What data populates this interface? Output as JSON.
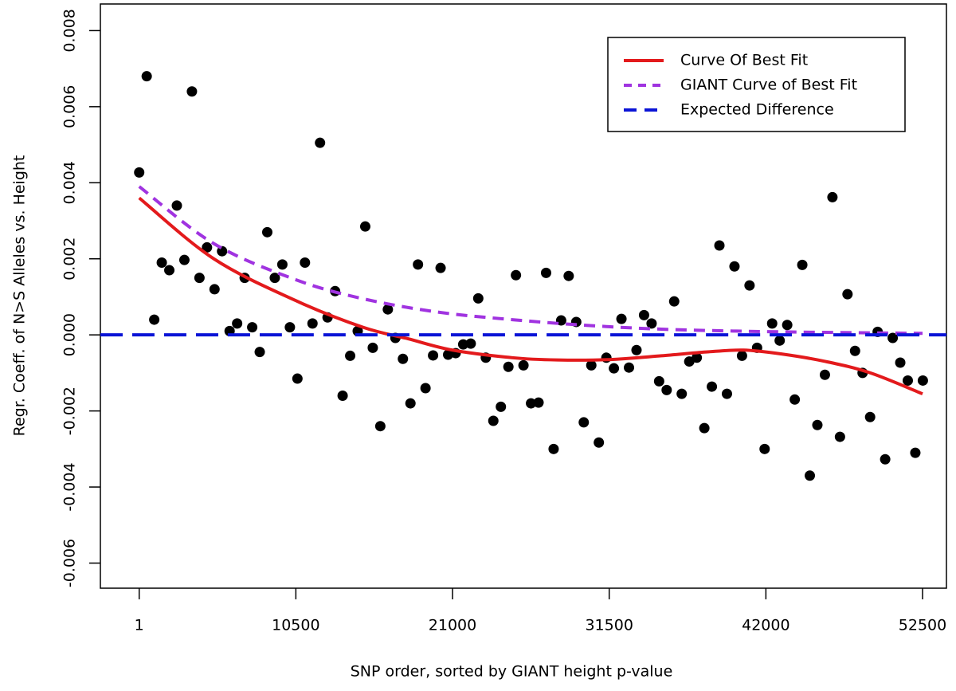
{
  "chart_data": {
    "type": "scatter",
    "x_label": "SNP order, sorted by GIANT height p-value",
    "y_label": "Regr. Coeff. of N>S Alleles vs. Height",
    "xlim": [
      -2600,
      54100
    ],
    "ylim": [
      -0.00666,
      0.0087
    ],
    "xticks": [
      1,
      10500,
      21000,
      31500,
      42000,
      52500
    ],
    "yticks": [
      {
        "value": -0.006,
        "label": "-0.006"
      },
      {
        "value": -0.004,
        "label": "-0.004"
      },
      {
        "value": -0.002,
        "label": "-0.002"
      },
      {
        "value": 0,
        "label": "0.000"
      },
      {
        "value": 0.002,
        "label": "0.002"
      },
      {
        "value": 0.004,
        "label": "0.004"
      },
      {
        "value": 0.006,
        "label": "0.006"
      },
      {
        "value": 0.008,
        "label": "0.008"
      }
    ],
    "legend": "top-right",
    "points": {
      "color": "#000000",
      "x": [
        1,
        505,
        1010,
        1515,
        2020,
        2525,
        3030,
        3535,
        4040,
        4545,
        5050,
        5555,
        6060,
        6565,
        7070,
        7575,
        8080,
        8585,
        9090,
        9595,
        10100,
        10605,
        11110,
        11615,
        12120,
        12625,
        13130,
        13635,
        14140,
        14645,
        15150,
        15655,
        16160,
        16665,
        17170,
        17675,
        18180,
        18685,
        19190,
        19695,
        20200,
        20705,
        21210,
        21715,
        22220,
        22725,
        23230,
        23735,
        24240,
        24745,
        25250,
        25755,
        26260,
        26765,
        27270,
        27775,
        28280,
        28785,
        29290,
        29795,
        30300,
        30805,
        31310,
        31815,
        32320,
        32825,
        33330,
        33835,
        34340,
        34845,
        35350,
        35855,
        36360,
        36865,
        37370,
        37875,
        38380,
        38885,
        39390,
        39895,
        40400,
        40905,
        41410,
        41915,
        42420,
        42925,
        43430,
        43935,
        44440,
        44945,
        45450,
        45955,
        46460,
        46965,
        47470,
        47975,
        48480,
        48985,
        49490,
        49995,
        50500,
        51005,
        51510,
        52015,
        52520
      ],
      "values": [
        0.00427,
        0.0068,
        0.0004,
        0.0019,
        0.0017,
        0.0034,
        0.00197,
        0.0064,
        0.0015,
        0.0023,
        0.0012,
        0.0022,
        0.0001,
        0.0003,
        0.0015,
        0.0002,
        -0.00045,
        0.0027,
        0.0015,
        0.00185,
        0.0002,
        -0.00115,
        0.0019,
        0.0003,
        0.00505,
        0.00046,
        0.00115,
        -0.0016,
        -0.00055,
        0.0001,
        0.00285,
        -0.00034,
        -0.0024,
        0.00067,
        -8e-05,
        -0.00063,
        -0.0018,
        0.00185,
        -0.0014,
        -0.00054,
        0.00176,
        -0.00052,
        -0.00048,
        -0.00025,
        -0.00023,
        0.00096,
        -0.0006,
        -0.00226,
        -0.00189,
        -0.00084,
        0.00157,
        -0.0008,
        -0.0018,
        -0.00178,
        0.00163,
        -0.003,
        0.00038,
        0.00155,
        0.00034,
        -0.0023,
        -0.0008,
        -0.00283,
        -0.0006,
        -0.00088,
        0.00042,
        -0.00086,
        -0.0004,
        0.00052,
        0.0003,
        -0.00122,
        -0.00145,
        0.00088,
        -0.00155,
        -0.0007,
        -0.0006,
        -0.00245,
        -0.00136,
        0.00235,
        -0.00155,
        0.0018,
        -0.00055,
        0.0013,
        -0.00034,
        -0.003,
        0.0003,
        -0.00015,
        0.00026,
        -0.0017,
        0.00184,
        -0.0037,
        -0.00237,
        -0.00105,
        0.00362,
        -0.00268,
        0.00107,
        -0.00042,
        -0.001,
        -0.00216,
        8e-05,
        -0.00327,
        -8e-05,
        -0.00073,
        -0.0012,
        -0.0031,
        -0.0012
      ]
    },
    "lines": [
      {
        "name": "Curve Of Best Fit",
        "color": "#e31a1c",
        "dash": "none",
        "x": [
          1,
          5000,
          10500,
          15000,
          18000,
          21000,
          25000,
          28000,
          31500,
          35000,
          38000,
          40500,
          43000,
          46000,
          49000,
          52500
        ],
        "values": [
          0.0036,
          0.002,
          0.0009,
          0.0002,
          -0.0001,
          -0.0004,
          -0.0006,
          -0.00066,
          -0.00065,
          -0.00055,
          -0.00045,
          -0.0004,
          -0.0005,
          -0.0007,
          -0.001,
          -0.00155
        ]
      },
      {
        "name": "GIANT Curve of Best Fit",
        "color": "#a033e0",
        "dash": "14,9",
        "x": [
          1,
          5000,
          10500,
          15000,
          20000,
          25000,
          30000,
          35000,
          40000,
          45000,
          52500
        ],
        "values": [
          0.0039,
          0.0024,
          0.00145,
          0.00095,
          0.0006,
          0.0004,
          0.00025,
          0.00015,
          0.0001,
          7e-05,
          4e-05
        ]
      },
      {
        "name": "Expected Difference",
        "color": "#0a14d6",
        "dash": "28,12",
        "x": [
          -2600,
          54100
        ],
        "values": [
          0,
          0
        ]
      }
    ]
  }
}
